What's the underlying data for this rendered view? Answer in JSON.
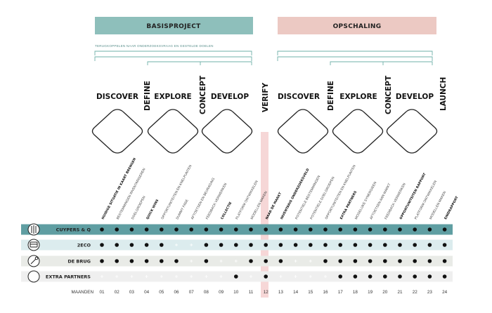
{
  "headers": {
    "basis": "BASISPROJECT",
    "opschaling": "OPSCHALING",
    "subtitle": "TERUGKOPPELEN NAAR ONDERZOEKSVRAAG EN GESTELDE DOELEN"
  },
  "phases": {
    "discover1": "DISCOVER",
    "define1": "DEFINE",
    "explore1": "EXPLORE",
    "concept1": "CONCEPT",
    "develop1": "DEVELOP",
    "verify": "VERIFY",
    "discover2": "DISCOVER",
    "define2": "DEFINE",
    "explore2": "EXPLORE",
    "concept2": "CONCEPT",
    "develop2": "DEVELOP",
    "launch": "LAUNCH"
  },
  "tasks": [
    {
      "label": "HUIDIGE SITUATIE IN KAART BRENGEN",
      "bold": true
    },
    {
      "label": "BESTEMMINGEN INVENTARISEREN",
      "bold": false
    },
    {
      "label": "DOELGROEPEN",
      "bold": false
    },
    {
      "label": "QUICK WINS",
      "bold": true
    },
    {
      "label": "OPPORTUNITEITEN EN KNELPUNTEN",
      "bold": false
    },
    {
      "label": "DUMMY FASE",
      "bold": false
    },
    {
      "label": "AFTOETSEN EN BEVRAGING",
      "bold": false
    },
    {
      "label": "FEEDBACK VERWERKEN",
      "bold": false
    },
    {
      "label": "COLLECTIE",
      "bold": true
    },
    {
      "label": "PLATFORM ONTWIKKELEN",
      "bold": false
    },
    {
      "label": "MODELLEN MAKEN",
      "bold": false
    },
    {
      "label": "NAAR DE MARKT",
      "bold": true
    },
    {
      "label": "INVENTARIS ONDERZOEKSVELD",
      "bold": true
    },
    {
      "label": "POTENTIELE BESTEMMINGEN",
      "bold": false
    },
    {
      "label": "POTENTIELE DOELGROEPEN",
      "bold": false
    },
    {
      "label": "OPPORTUNITEITEN EN KNELPUNTEN",
      "bold": false
    },
    {
      "label": "EXTRA PARTNERS",
      "bold": true
    },
    {
      "label": "MOGELIJKE SYNERGIEEN",
      "bold": false
    },
    {
      "label": "AFTOETSEN AAN MARKT",
      "bold": false
    },
    {
      "label": "FEEDBACK VERWERKEN",
      "bold": false
    },
    {
      "label": "OPPORTUNITEITEN RAPPORT",
      "bold": true
    },
    {
      "label": "PLATFORM ONTWIKKELEN",
      "bold": false
    },
    {
      "label": "MODELLEN MAKEN",
      "bold": false
    },
    {
      "label": "EINDRAPPORT",
      "bold": true
    }
  ],
  "rows": [
    {
      "label": "CUYPERS & Q",
      "icon": "tools-icon",
      "band": "#5f9ea2",
      "dots": [
        1,
        1,
        1,
        1,
        1,
        1,
        1,
        1,
        1,
        1,
        1,
        1,
        1,
        1,
        1,
        1,
        1,
        1,
        1,
        1,
        1,
        1,
        1,
        1
      ]
    },
    {
      "label": "2ECO",
      "icon": "bus-icon",
      "band": "#dcecee",
      "dots": [
        1,
        1,
        1,
        1,
        1,
        0,
        0,
        1,
        1,
        1,
        1,
        1,
        1,
        1,
        1,
        1,
        1,
        1,
        1,
        1,
        1,
        1,
        1,
        1
      ]
    },
    {
      "label": "DE BRUG",
      "icon": "wrench-icon",
      "band": "#e9ebe7",
      "dots": [
        1,
        1,
        1,
        1,
        1,
        1,
        0,
        1,
        0,
        0,
        1,
        1,
        1,
        0,
        0,
        1,
        1,
        1,
        1,
        1,
        1,
        1,
        1,
        1
      ]
    },
    {
      "label": "EXTRA PARTNERS",
      "icon": "circle-icon",
      "band": "#efefef",
      "dots": [
        0,
        0,
        0,
        0,
        0,
        0,
        0,
        0,
        0,
        1,
        0,
        1,
        0,
        0,
        0,
        0,
        1,
        1,
        1,
        1,
        1,
        1,
        1,
        1
      ]
    }
  ],
  "months_label": "MAANDEN",
  "months": [
    "01",
    "02",
    "03",
    "04",
    "05",
    "06",
    "07",
    "08",
    "09",
    "10",
    "11",
    "12",
    "13",
    "14",
    "15",
    "16",
    "17",
    "18",
    "19",
    "20",
    "21",
    "22",
    "23",
    "24"
  ],
  "colors": {
    "teal": "#8ebfbb",
    "pink": "#ecc9c3",
    "verify": "#f6d7d7",
    "line": "#6fb0a8"
  }
}
